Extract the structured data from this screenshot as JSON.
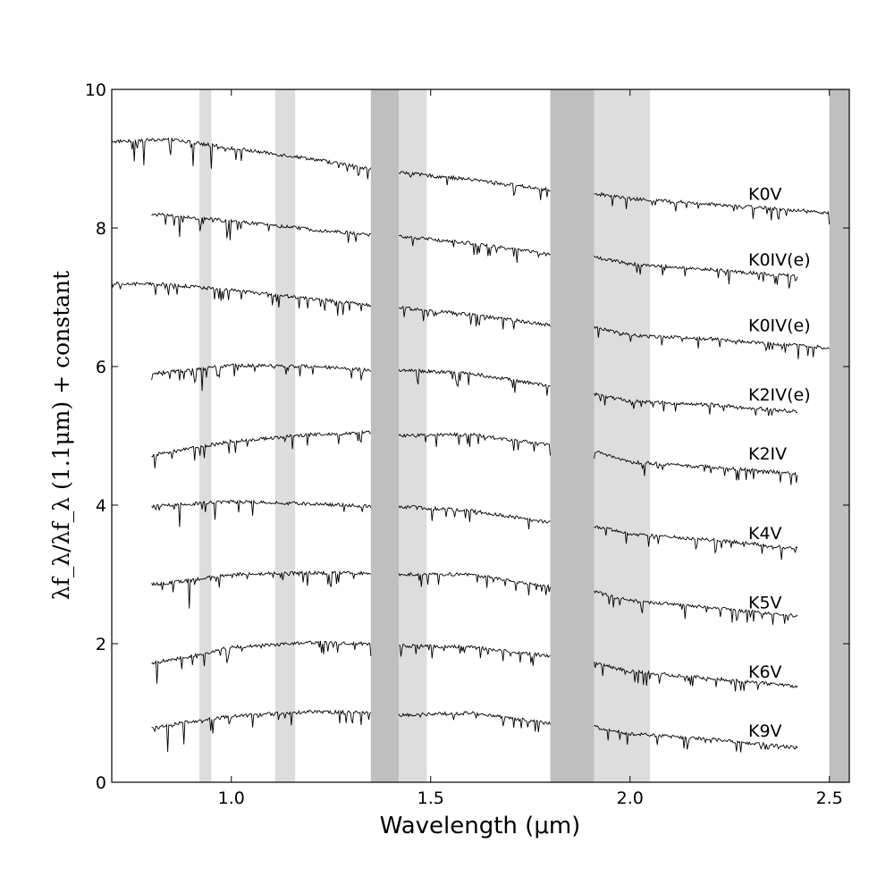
{
  "chart_data": {
    "type": "line",
    "xlabel": "Wavelength (μm)",
    "ylabel": "λf_λ/λf_λ (1.1μm) + constant",
    "xlim": [
      0.7,
      2.55
    ],
    "ylim": [
      0,
      10
    ],
    "x_ticks": [
      {
        "value": 1.0,
        "label": "1.0"
      },
      {
        "value": 1.5,
        "label": "1.5"
      },
      {
        "value": 2.0,
        "label": "2.0"
      },
      {
        "value": 2.5,
        "label": "2.5"
      }
    ],
    "y_ticks": [
      {
        "value": 0,
        "label": "0"
      },
      {
        "value": 2,
        "label": "2"
      },
      {
        "value": 4,
        "label": "4"
      },
      {
        "value": 6,
        "label": "6"
      },
      {
        "value": 8,
        "label": "8"
      },
      {
        "value": 10,
        "label": "10"
      }
    ],
    "grid": false,
    "shaded_bands": [
      {
        "x0": 0.92,
        "x1": 0.95,
        "shade": "light",
        "color": "#dddddd"
      },
      {
        "x0": 1.11,
        "x1": 1.16,
        "shade": "light",
        "color": "#dddddd"
      },
      {
        "x0": 1.35,
        "x1": 1.42,
        "shade": "dark",
        "color": "#bfbfbf"
      },
      {
        "x0": 1.42,
        "x1": 1.49,
        "shade": "light",
        "color": "#dddddd"
      },
      {
        "x0": 1.8,
        "x1": 1.91,
        "shade": "dark",
        "color": "#bfbfbf"
      },
      {
        "x0": 1.91,
        "x1": 2.05,
        "shade": "light",
        "color": "#dddddd"
      },
      {
        "x0": 2.5,
        "x1": 2.55,
        "shade": "dark",
        "color": "#bfbfbf"
      }
    ],
    "segment_ranges": [
      [
        0.7,
        1.35
      ],
      [
        1.42,
        1.8
      ],
      [
        1.91,
        2.52
      ]
    ],
    "series": [
      {
        "name": "K0V",
        "label_value": 8.5,
        "x_start": 0.7,
        "x_end": 2.5,
        "x": [
          0.7,
          0.85,
          1.0,
          1.2,
          1.35,
          1.42,
          1.6,
          1.8,
          1.91,
          2.0,
          2.2,
          2.5
        ],
        "y": [
          9.25,
          9.28,
          9.15,
          9.0,
          8.85,
          8.8,
          8.7,
          8.55,
          8.5,
          8.42,
          8.35,
          8.22
        ]
      },
      {
        "name": "K0IV(e)",
        "label_value": 7.55,
        "x_start": 0.8,
        "x_end": 2.42,
        "x": [
          0.8,
          0.9,
          1.0,
          1.2,
          1.35,
          1.42,
          1.6,
          1.8,
          1.91,
          2.0,
          2.2,
          2.42
        ],
        "y": [
          8.2,
          8.15,
          8.1,
          7.98,
          7.9,
          7.88,
          7.78,
          7.62,
          7.58,
          7.48,
          7.4,
          7.3
        ]
      },
      {
        "name": "K0IV(e)",
        "label_value": 6.6,
        "x_start": 0.7,
        "x_end": 2.5,
        "x": [
          0.7,
          0.85,
          1.0,
          1.2,
          1.35,
          1.42,
          1.6,
          1.8,
          1.91,
          2.0,
          2.2,
          2.5
        ],
        "y": [
          7.2,
          7.18,
          7.1,
          6.98,
          6.88,
          6.85,
          6.75,
          6.6,
          6.58,
          6.45,
          6.4,
          6.27
        ]
      },
      {
        "name": "K2IV(e)",
        "label_value": 5.6,
        "x_start": 0.8,
        "x_end": 2.42,
        "x": [
          0.8,
          0.9,
          1.0,
          1.2,
          1.35,
          1.42,
          1.6,
          1.8,
          1.91,
          2.0,
          2.2,
          2.42
        ],
        "y": [
          5.9,
          5.95,
          6.02,
          6.0,
          5.95,
          5.95,
          5.9,
          5.72,
          5.6,
          5.5,
          5.45,
          5.35
        ]
      },
      {
        "name": "K2IV",
        "label_value": 4.75,
        "x_start": 0.8,
        "x_end": 2.42,
        "x": [
          0.8,
          0.9,
          1.0,
          1.2,
          1.35,
          1.42,
          1.6,
          1.8,
          1.91,
          2.0,
          2.2,
          2.42
        ],
        "y": [
          4.72,
          4.82,
          4.92,
          5.02,
          5.05,
          5.0,
          5.02,
          4.87,
          4.78,
          4.62,
          4.55,
          4.45
        ]
      },
      {
        "name": "K4V",
        "label_value": 3.6,
        "x_start": 0.8,
        "x_end": 2.42,
        "x": [
          0.8,
          0.9,
          1.0,
          1.2,
          1.35,
          1.42,
          1.6,
          1.8,
          1.91,
          2.0,
          2.2,
          2.42
        ],
        "y": [
          3.98,
          4.02,
          4.05,
          4.02,
          3.98,
          3.98,
          3.92,
          3.75,
          3.7,
          3.58,
          3.5,
          3.38
        ]
      },
      {
        "name": "K5V",
        "label_value": 2.6,
        "x_start": 0.8,
        "x_end": 2.42,
        "x": [
          0.8,
          0.9,
          1.0,
          1.2,
          1.35,
          1.42,
          1.6,
          1.8,
          1.91,
          2.0,
          2.2,
          2.42
        ],
        "y": [
          2.85,
          2.92,
          3.0,
          3.02,
          3.02,
          3.0,
          3.0,
          2.82,
          2.75,
          2.62,
          2.52,
          2.4
        ]
      },
      {
        "name": "K6V",
        "label_value": 1.6,
        "x_start": 0.8,
        "x_end": 2.42,
        "x": [
          0.8,
          0.9,
          1.0,
          1.2,
          1.35,
          1.42,
          1.6,
          1.8,
          1.91,
          2.0,
          2.2,
          2.42
        ],
        "y": [
          1.72,
          1.82,
          1.95,
          2.02,
          2.0,
          1.97,
          1.95,
          1.82,
          1.72,
          1.6,
          1.5,
          1.38
        ]
      },
      {
        "name": "K9V",
        "label_value": 0.75,
        "x_start": 0.8,
        "x_end": 2.42,
        "x": [
          0.8,
          0.9,
          1.0,
          1.2,
          1.35,
          1.42,
          1.6,
          1.8,
          1.91,
          2.0,
          2.2,
          2.42
        ],
        "y": [
          0.78,
          0.88,
          0.95,
          1.02,
          1.0,
          0.97,
          1.0,
          0.85,
          0.8,
          0.7,
          0.62,
          0.5
        ]
      }
    ]
  }
}
